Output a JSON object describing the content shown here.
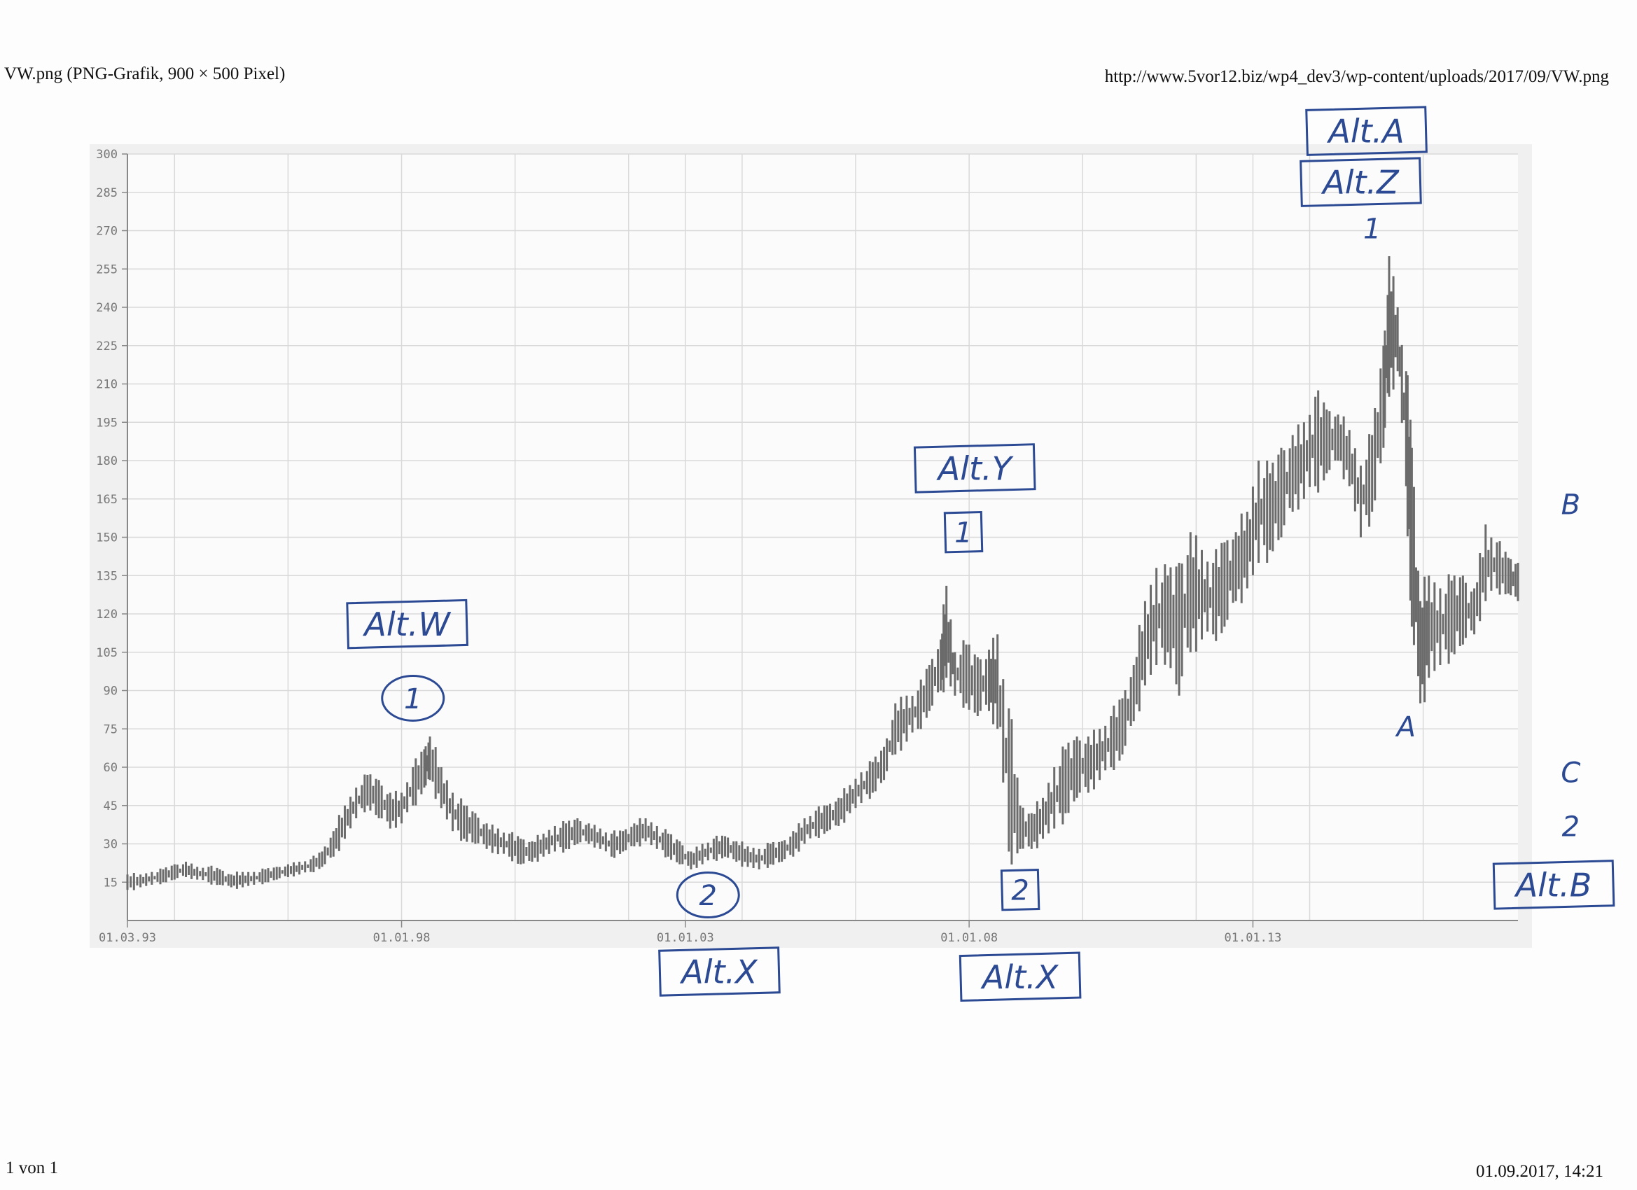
{
  "header": {
    "title": "VW.png (PNG-Grafik, 900 × 500 Pixel)",
    "url": "http://www.5vor12.biz/wp4_dev3/wp-content/uploads/2017/09/VW.png"
  },
  "footer": {
    "page": "1 von 1",
    "datetime": "01.09.2017, 14:21"
  },
  "colors": {
    "bars": "#6b6b6b",
    "grid": "#d9d9d9",
    "ink": "#2b4a93",
    "panel": "#f0f0f0"
  },
  "chart_data": {
    "type": "bar",
    "subtype": "ohlc-range-bars",
    "title": "",
    "xlabel": "",
    "ylabel": "",
    "ylim": [
      0,
      300
    ],
    "yticks": [
      15,
      30,
      45,
      60,
      75,
      90,
      105,
      120,
      135,
      150,
      165,
      180,
      195,
      210,
      225,
      240,
      255,
      270,
      285,
      300
    ],
    "xlim": [
      1993.17,
      2017.67
    ],
    "xticks": [
      {
        "x": 1993.17,
        "label": "01.03.93"
      },
      {
        "x": 1998.0,
        "label": "01.01.98"
      },
      {
        "x": 2003.0,
        "label": "01.01.03"
      },
      {
        "x": 2008.0,
        "label": "01.01.08"
      },
      {
        "x": 2013.0,
        "label": "01.01.13"
      }
    ],
    "grid": true,
    "points": [
      [
        1993.17,
        12,
        18
      ],
      [
        1993.4,
        13,
        18
      ],
      [
        1993.6,
        14,
        19
      ],
      [
        1993.8,
        15,
        20
      ],
      [
        1994.0,
        16,
        22
      ],
      [
        1994.2,
        17,
        23
      ],
      [
        1994.4,
        16,
        21
      ],
      [
        1994.6,
        15,
        21
      ],
      [
        1994.8,
        14,
        20
      ],
      [
        1995.0,
        13,
        18
      ],
      [
        1995.2,
        13,
        19
      ],
      [
        1995.4,
        14,
        19
      ],
      [
        1995.6,
        15,
        20
      ],
      [
        1995.8,
        16,
        21
      ],
      [
        1996.0,
        17,
        22
      ],
      [
        1996.2,
        18,
        23
      ],
      [
        1996.4,
        19,
        24
      ],
      [
        1996.6,
        21,
        27
      ],
      [
        1996.8,
        25,
        35
      ],
      [
        1997.0,
        32,
        45
      ],
      [
        1997.2,
        40,
        52
      ],
      [
        1997.4,
        45,
        57
      ],
      [
        1997.6,
        40,
        55
      ],
      [
        1997.8,
        36,
        50
      ],
      [
        1998.0,
        38,
        50
      ],
      [
        1998.2,
        45,
        60
      ],
      [
        1998.4,
        52,
        67
      ],
      [
        1998.5,
        55,
        72
      ],
      [
        1998.7,
        44,
        60
      ],
      [
        1998.9,
        35,
        50
      ],
      [
        1999.1,
        32,
        45
      ],
      [
        1999.3,
        30,
        42
      ],
      [
        1999.5,
        28,
        38
      ],
      [
        1999.7,
        26,
        36
      ],
      [
        1999.9,
        25,
        34
      ],
      [
        2000.1,
        22,
        32
      ],
      [
        2000.3,
        23,
        31
      ],
      [
        2000.5,
        25,
        34
      ],
      [
        2000.7,
        27,
        37
      ],
      [
        2000.9,
        28,
        38
      ],
      [
        2001.1,
        30,
        40
      ],
      [
        2001.3,
        30,
        38
      ],
      [
        2001.5,
        28,
        36
      ],
      [
        2001.7,
        25,
        34
      ],
      [
        2001.9,
        27,
        35
      ],
      [
        2002.1,
        29,
        38
      ],
      [
        2002.3,
        31,
        40
      ],
      [
        2002.5,
        28,
        37
      ],
      [
        2002.7,
        25,
        34
      ],
      [
        2002.9,
        22,
        31
      ],
      [
        2003.1,
        20,
        27
      ],
      [
        2003.3,
        22,
        30
      ],
      [
        2003.5,
        24,
        32
      ],
      [
        2003.7,
        25,
        33
      ],
      [
        2003.9,
        23,
        31
      ],
      [
        2004.1,
        21,
        29
      ],
      [
        2004.3,
        20,
        28
      ],
      [
        2004.5,
        22,
        30
      ],
      [
        2004.7,
        23,
        31
      ],
      [
        2004.9,
        25,
        35
      ],
      [
        2005.1,
        30,
        40
      ],
      [
        2005.3,
        33,
        43
      ],
      [
        2005.5,
        35,
        45
      ],
      [
        2005.7,
        37,
        48
      ],
      [
        2005.9,
        42,
        53
      ],
      [
        2006.1,
        46,
        58
      ],
      [
        2006.3,
        50,
        62
      ],
      [
        2006.5,
        55,
        68
      ],
      [
        2006.7,
        65,
        85
      ],
      [
        2006.9,
        70,
        88
      ],
      [
        2007.1,
        75,
        90
      ],
      [
        2007.3,
        82,
        100
      ],
      [
        2007.5,
        90,
        110
      ],
      [
        2007.6,
        95,
        131
      ],
      [
        2007.75,
        88,
        105
      ],
      [
        2007.95,
        85,
        108
      ],
      [
        2008.15,
        80,
        103
      ],
      [
        2008.35,
        82,
        106
      ],
      [
        2008.5,
        75,
        112
      ],
      [
        2008.7,
        27,
        83
      ],
      [
        2008.9,
        28,
        45
      ],
      [
        2009.1,
        28,
        42
      ],
      [
        2009.3,
        32,
        48
      ],
      [
        2009.5,
        36,
        60
      ],
      [
        2009.7,
        42,
        67
      ],
      [
        2009.9,
        48,
        72
      ],
      [
        2010.1,
        50,
        72
      ],
      [
        2010.3,
        55,
        75
      ],
      [
        2010.5,
        60,
        80
      ],
      [
        2010.7,
        65,
        87
      ],
      [
        2010.9,
        78,
        100
      ],
      [
        2011.1,
        92,
        125
      ],
      [
        2011.3,
        100,
        138
      ],
      [
        2011.5,
        105,
        135
      ],
      [
        2011.7,
        88,
        140
      ],
      [
        2011.9,
        105,
        152
      ],
      [
        2012.1,
        110,
        145
      ],
      [
        2012.3,
        112,
        140
      ],
      [
        2012.5,
        115,
        148
      ],
      [
        2012.7,
        125,
        152
      ],
      [
        2012.9,
        130,
        160
      ],
      [
        2013.1,
        140,
        180
      ],
      [
        2013.3,
        145,
        175
      ],
      [
        2013.5,
        150,
        185
      ],
      [
        2013.7,
        160,
        190
      ],
      [
        2013.9,
        165,
        195
      ],
      [
        2014.1,
        170,
        205
      ],
      [
        2014.3,
        175,
        200
      ],
      [
        2014.5,
        180,
        198
      ],
      [
        2014.7,
        170,
        192
      ],
      [
        2014.9,
        150,
        178
      ],
      [
        2015.1,
        160,
        190
      ],
      [
        2015.3,
        185,
        225
      ],
      [
        2015.4,
        205,
        260
      ],
      [
        2015.55,
        215,
        240
      ],
      [
        2015.7,
        170,
        215
      ],
      [
        2015.8,
        115,
        185
      ],
      [
        2015.95,
        85,
        125
      ],
      [
        2016.1,
        95,
        135
      ],
      [
        2016.3,
        100,
        130
      ],
      [
        2016.5,
        105,
        133
      ],
      [
        2016.7,
        108,
        135
      ],
      [
        2016.9,
        112,
        130
      ],
      [
        2017.1,
        125,
        155
      ],
      [
        2017.3,
        130,
        148
      ],
      [
        2017.5,
        128,
        142
      ],
      [
        2017.67,
        125,
        140
      ]
    ],
    "annotations": [
      {
        "text": "Alt.W",
        "x": 1998.1,
        "y": 116,
        "style": "boxed"
      },
      {
        "text": "1",
        "x": 1998.2,
        "y": 87,
        "style": "circled"
      },
      {
        "text": "2",
        "x": 2003.4,
        "y": 10,
        "style": "circled"
      },
      {
        "text": "Alt.X",
        "x": 2003.6,
        "y": -20,
        "style": "boxed"
      },
      {
        "text": "Alt.Y",
        "x": 2008.1,
        "y": 177,
        "style": "boxed"
      },
      {
        "text": "1",
        "x": 2007.9,
        "y": 152,
        "style": "boxed"
      },
      {
        "text": "2",
        "x": 2008.9,
        "y": 12,
        "style": "boxed"
      },
      {
        "text": "Alt.X",
        "x": 2008.9,
        "y": -22,
        "style": "boxed"
      },
      {
        "text": "Alt.A",
        "x": 2015.0,
        "y": 309,
        "style": "boxed"
      },
      {
        "text": "Alt.Z",
        "x": 2014.9,
        "y": 289,
        "style": "boxed"
      },
      {
        "text": "1",
        "x": 2015.1,
        "y": 271,
        "style": "plain"
      },
      {
        "text": "A",
        "x": 2015.7,
        "y": 76,
        "style": "plain"
      },
      {
        "text": "B",
        "x": 2018.6,
        "y": 163,
        "style": "plain"
      },
      {
        "text": "C",
        "x": 2018.6,
        "y": 58,
        "style": "plain"
      },
      {
        "text": "2",
        "x": 2018.6,
        "y": 37,
        "style": "plain"
      },
      {
        "text": "Alt.B",
        "x": 2018.3,
        "y": 14,
        "style": "boxed"
      }
    ]
  }
}
